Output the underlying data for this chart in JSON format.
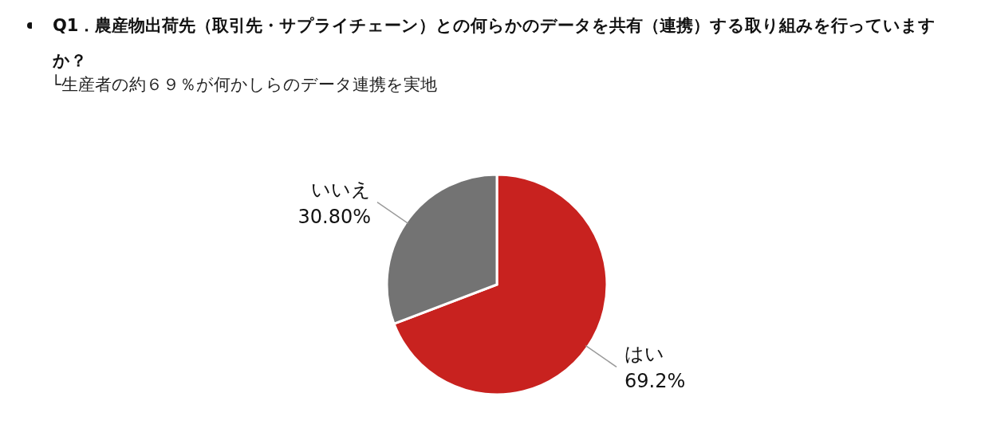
{
  "chart_data": {
    "type": "pie",
    "title": "Q1．農産物出荷先（取引先・サプライチェーン）との何らかのデータを共有（連携）する取り組みを行っていますか？",
    "subtitle": "└生産者の約６９％が何かしらのデータ連携を実地",
    "categories": [
      "はい",
      "いいえ"
    ],
    "values": [
      69.2,
      30.8
    ],
    "value_labels": [
      "69.2%",
      "30.80%"
    ],
    "colors": [
      "#c8221f",
      "#737373"
    ],
    "legend": false
  }
}
